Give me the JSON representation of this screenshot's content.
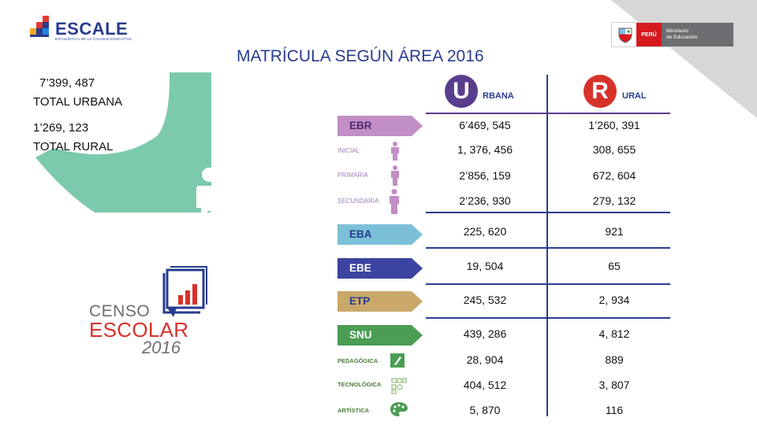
{
  "logo": {
    "name": "ESCALE",
    "subtitle": "ESTADÍSTICA DE LA CALIDAD EDUCATIVA"
  },
  "ministry": {
    "country": "PERÚ",
    "line1": "Ministerio",
    "line2": "de Educación"
  },
  "title": "MATRÍCULA SEGÚN ÁREA 2016",
  "totals": {
    "urban_value": "7’399, 487",
    "urban_label": "TOTAL URBANA",
    "rural_value": "1’269, 123",
    "rural_label": "TOTAL RURAL"
  },
  "columns": {
    "urban_letter": "U",
    "urban_rest": "RBANA",
    "rural_letter": "R",
    "rural_rest": "URAL"
  },
  "rows": [
    {
      "label": "EBR",
      "urban": "6’469, 545",
      "rural": "1’260, 391"
    },
    {
      "label": "INICIAL",
      "urban": "1, 376, 456",
      "rural": "308, 655"
    },
    {
      "label": "PRIMARIA",
      "urban": "2’856, 159",
      "rural": "672, 604"
    },
    {
      "label": "SECUNDARIA",
      "urban": "2’236, 930",
      "rural": "279, 132"
    },
    {
      "label": "EBA",
      "urban": "225, 620",
      "rural": "921"
    },
    {
      "label": "EBE",
      "urban": "19, 504",
      "rural": "65"
    },
    {
      "label": "ETP",
      "urban": "245, 532",
      "rural": "2, 934"
    },
    {
      "label": "SNU",
      "urban": "439, 286",
      "rural": "4, 812"
    },
    {
      "label": "PEDAGÓGICA",
      "urban": "28, 904",
      "rural": "889"
    },
    {
      "label": "TECNOLÓGICA",
      "urban": "404, 512",
      "rural": "3, 807"
    },
    {
      "label": "ARTÍSTICA",
      "urban": "5, 870",
      "rural": "116"
    }
  ],
  "censo": {
    "line1": "CENSO",
    "line2": "ESCOLAR",
    "year": "2016"
  },
  "colors": {
    "navy": "#283c8e",
    "purple": "#5a3d8c",
    "red": "#d7322a",
    "ebr": "#c28ec6",
    "eba": "#7cc0d8",
    "ebe": "#3b44a0",
    "etp": "#c9a86a",
    "snu": "#4a9d52",
    "teal": "#7ccaac"
  }
}
